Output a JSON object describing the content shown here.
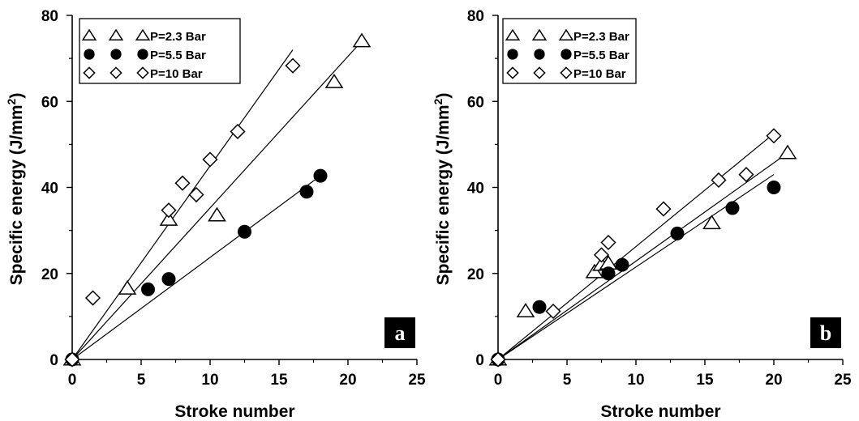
{
  "chart_data": [
    {
      "type": "scatter",
      "panel_label": "a",
      "xlabel": "Stroke number",
      "ylabel": "Specific energy (J/mm",
      "ylabel_sup": "2",
      "ylabel_close": ")",
      "xlim": [
        0,
        25
      ],
      "ylim": [
        0,
        80
      ],
      "xticks": [
        "0",
        "5",
        "10",
        "15",
        "20",
        "25"
      ],
      "yticks": [
        "0",
        "20",
        "40",
        "60",
        "80"
      ],
      "legend_position": "top-left",
      "series": [
        {
          "name": "P=2.3 Bar",
          "marker": "triangle",
          "x": [
            0,
            4,
            7,
            10.5,
            19,
            21
          ],
          "y": [
            0,
            16.5,
            32.5,
            33.5,
            64.5,
            74
          ],
          "fit": {
            "x": [
              0,
              21
            ],
            "y": [
              0,
              74
            ]
          }
        },
        {
          "name": "P=5.5 Bar",
          "marker": "circle",
          "x": [
            0,
            5.5,
            7,
            12.5,
            17,
            18
          ],
          "y": [
            0,
            16.3,
            18.7,
            29.7,
            39,
            42.7
          ],
          "fit": {
            "x": [
              0,
              18
            ],
            "y": [
              0,
              42.7
            ]
          }
        },
        {
          "name": "P=10 Bar",
          "marker": "diamond",
          "x": [
            0,
            1.5,
            7,
            8,
            9,
            10,
            12,
            16
          ],
          "y": [
            0,
            14.3,
            34.7,
            41,
            38.3,
            46.5,
            53,
            68.3
          ],
          "fit": {
            "x": [
              0,
              16
            ],
            "y": [
              0,
              72
            ]
          }
        }
      ]
    },
    {
      "type": "scatter",
      "panel_label": "b",
      "xlabel": "Stroke number",
      "ylabel": "Specific energy (J/mm",
      "ylabel_sup": "2",
      "ylabel_close": ")",
      "xlim": [
        0,
        25
      ],
      "ylim": [
        0,
        80
      ],
      "xticks": [
        "0",
        "5",
        "10",
        "15",
        "20",
        "25"
      ],
      "yticks": [
        "0",
        "20",
        "40",
        "60",
        "80"
      ],
      "legend_position": "top-left",
      "series": [
        {
          "name": "P=2.3 Bar",
          "marker": "triangle",
          "x": [
            0,
            2,
            7,
            7.5,
            8,
            15.5,
            21
          ],
          "y": [
            0,
            11.2,
            20.3,
            22,
            22.3,
            31.7,
            48
          ],
          "fit": {
            "x": [
              0,
              21
            ],
            "y": [
              0,
              48
            ]
          }
        },
        {
          "name": "P=5.5 Bar",
          "marker": "circle",
          "x": [
            0,
            3,
            8,
            9,
            13,
            17,
            20
          ],
          "y": [
            0,
            12.2,
            20,
            22,
            29.3,
            35.2,
            40
          ],
          "fit": {
            "x": [
              0,
              20
            ],
            "y": [
              0,
              43
            ]
          }
        },
        {
          "name": "P=10 Bar",
          "marker": "diamond",
          "x": [
            0,
            4,
            7.5,
            8,
            12,
            16,
            18,
            20
          ],
          "y": [
            0,
            11.2,
            24.3,
            27.2,
            35,
            41.7,
            43,
            52
          ],
          "fit": {
            "x": [
              0,
              20
            ],
            "y": [
              0,
              52.5
            ]
          }
        }
      ]
    }
  ]
}
